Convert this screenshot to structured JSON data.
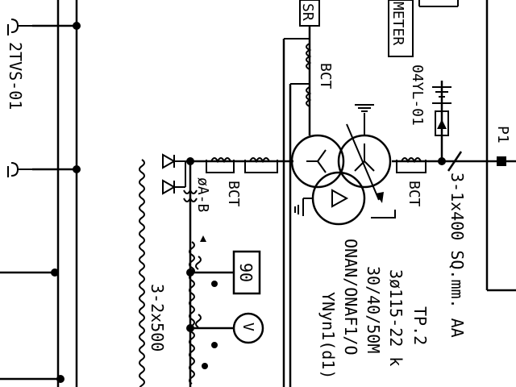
{
  "diagram": {
    "labels": {
      "twotvs": "2TVS-01",
      "sr": "SR",
      "meter": "METER",
      "bct_top": "BCT",
      "bct_left": "BCT",
      "bct_right": "BCT",
      "yl": "04YL-01",
      "p1": "P1",
      "cable_400": "3-1x400  SQ.mm.  AA",
      "phase_ab": "øA-B",
      "relay_90": "90",
      "voltmeter": "V",
      "cable_500": "3-2x500",
      "tp2": "TP.2",
      "rating1": "3ø115-22  k",
      "rating2": "30/40/50M",
      "rating3": "ONAN/ONAF1/O",
      "rating4": "YNyn1(d1)"
    }
  }
}
